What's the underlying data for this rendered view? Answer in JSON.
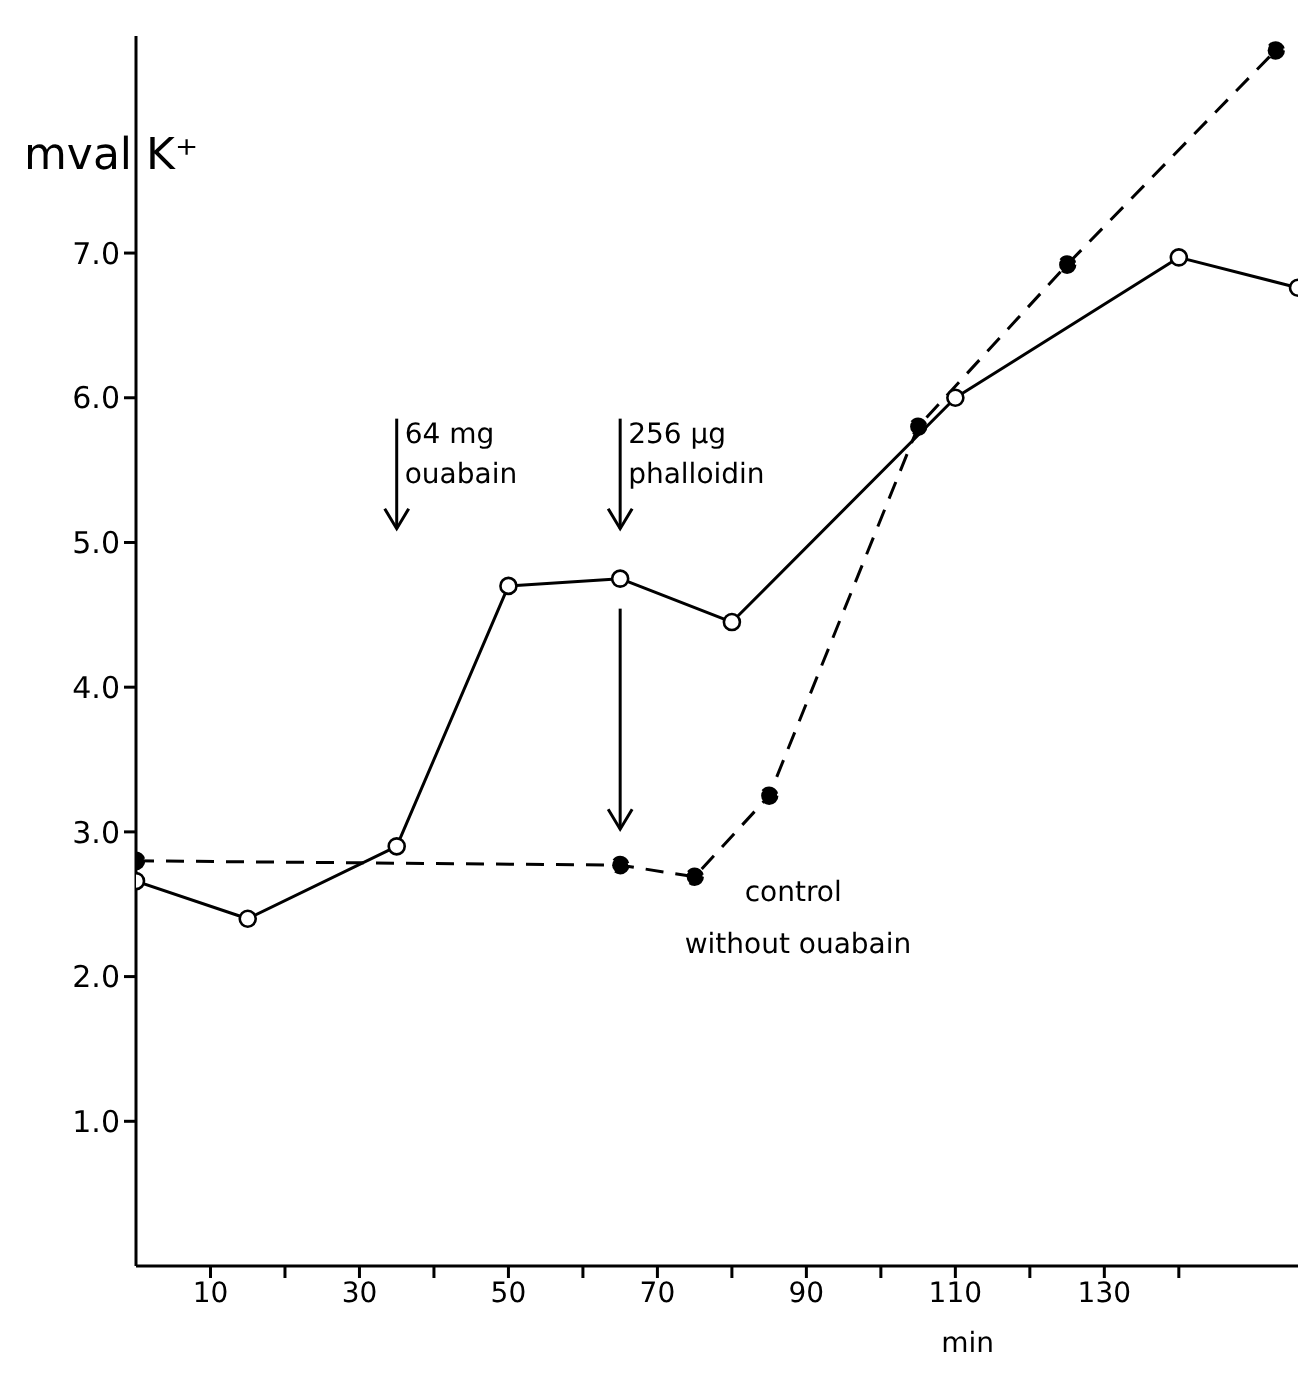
{
  "chart_data": {
    "type": "line",
    "xlabel": "min",
    "ylabel": "mval K⁺",
    "xlim": [
      0,
      156
    ],
    "ylim": [
      0,
      8.5
    ],
    "xticks": [
      {
        "value": 10,
        "label": "10"
      },
      {
        "value": 20,
        "label": null
      },
      {
        "value": 30,
        "label": "30"
      },
      {
        "value": 40,
        "label": null
      },
      {
        "value": 50,
        "label": "50"
      },
      {
        "value": 60,
        "label": null
      },
      {
        "value": 70,
        "label": "70"
      },
      {
        "value": 80,
        "label": null
      },
      {
        "value": 90,
        "label": "90"
      },
      {
        "value": 100,
        "label": null
      },
      {
        "value": 110,
        "label": "110"
      },
      {
        "value": 120,
        "label": null
      },
      {
        "value": 130,
        "label": "130"
      },
      {
        "value": 140,
        "label": null
      }
    ],
    "yticks": [
      {
        "value": 1,
        "label": "1.0"
      },
      {
        "value": 2,
        "label": "2.0"
      },
      {
        "value": 3,
        "label": "3.0"
      },
      {
        "value": 4,
        "label": "4.0"
      },
      {
        "value": 5,
        "label": "5.0"
      },
      {
        "value": 6,
        "label": "6.0"
      },
      {
        "value": 7,
        "label": "7.0"
      }
    ],
    "grid": false,
    "legend": false,
    "marker": "circle",
    "series": [
      {
        "color": "#000000",
        "line_style": "solid",
        "x": [
          0,
          15,
          35,
          50,
          65,
          80,
          110,
          140,
          156
        ],
        "values": [
          2.66,
          2.4,
          2.9,
          4.7,
          4.75,
          4.45,
          6.0,
          6.97,
          6.76
        ]
      },
      {
        "name": "control without ouabain",
        "color": "#000000",
        "line_style": "dashed",
        "x": [
          0,
          65,
          75,
          85,
          105,
          125,
          153
        ],
        "values": [
          2.8,
          2.77,
          2.69,
          3.25,
          5.8,
          6.92,
          8.4
        ]
      }
    ],
    "annotations": [
      "64 mg ouabain",
      "256 µg phalloidin"
    ]
  }
}
